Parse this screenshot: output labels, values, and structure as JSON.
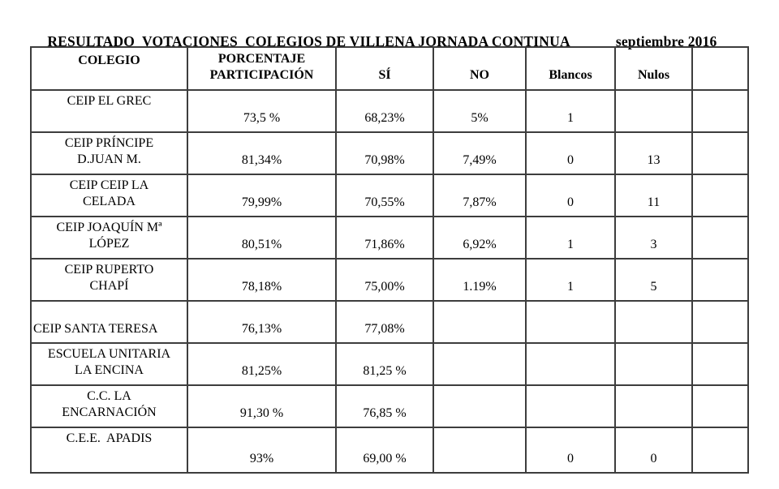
{
  "title": {
    "main": "RESULTADO  VOTACIONES  COLEGIOS DE VILLENA JORNADA CONTINUA",
    "date": "septiembre 2016"
  },
  "table": {
    "headers": [
      "COLEGIO",
      "PORCENTAJE\nPARTICIPACIÓN",
      "SÍ",
      "NO",
      "Blancos",
      "Nulos",
      ""
    ],
    "rows": [
      {
        "colegio": "CEIP EL GREC",
        "name_valign": "top",
        "name_align": "center",
        "values": [
          "73,5 %",
          "68,23%",
          "5%",
          "1",
          "",
          ""
        ]
      },
      {
        "colegio": "CEIP PRÍNCIPE\nD.JUAN M.",
        "name_valign": "top",
        "name_align": "center",
        "values": [
          "81,34%",
          "70,98%",
          "7,49%",
          "0",
          "13",
          ""
        ]
      },
      {
        "colegio": "CEIP CEIP LA\nCELADA",
        "name_valign": "top",
        "name_align": "center",
        "values": [
          "79,99%",
          "70,55%",
          "7,87%",
          "0",
          "11",
          ""
        ]
      },
      {
        "colegio": "CEIP JOAQUÍN Mª\nLÓPEZ",
        "name_valign": "top",
        "name_align": "center",
        "values": [
          "80,51%",
          "71,86%",
          "6,92%",
          "1",
          "3",
          ""
        ]
      },
      {
        "colegio": "CEIP RUPERTO\nCHAPÍ",
        "name_valign": "top",
        "name_align": "center",
        "values": [
          "78,18%",
          "75,00%",
          "1.19%",
          "1",
          "5",
          ""
        ]
      },
      {
        "colegio": "CEIP SANTA TERESA",
        "name_valign": "bottom",
        "name_align": "left",
        "values": [
          "76,13%",
          "77,08%",
          "",
          "",
          "",
          ""
        ]
      },
      {
        "colegio": "ESCUELA UNITARIA\nLA ENCINA",
        "name_valign": "top",
        "name_align": "center",
        "values": [
          "81,25%",
          "81,25 %",
          "",
          "",
          "",
          ""
        ]
      },
      {
        "colegio": "C.C. LA\nENCARNACIÓN",
        "name_valign": "top",
        "name_align": "center",
        "values": [
          "91,30 %",
          "76,85 %",
          "",
          "",
          "",
          ""
        ]
      },
      {
        "colegio": "C.E.E.  APADIS",
        "name_valign": "top",
        "name_align": "center",
        "values": [
          "93%",
          "69,00 %",
          "",
          "0",
          "0",
          ""
        ]
      }
    ]
  }
}
